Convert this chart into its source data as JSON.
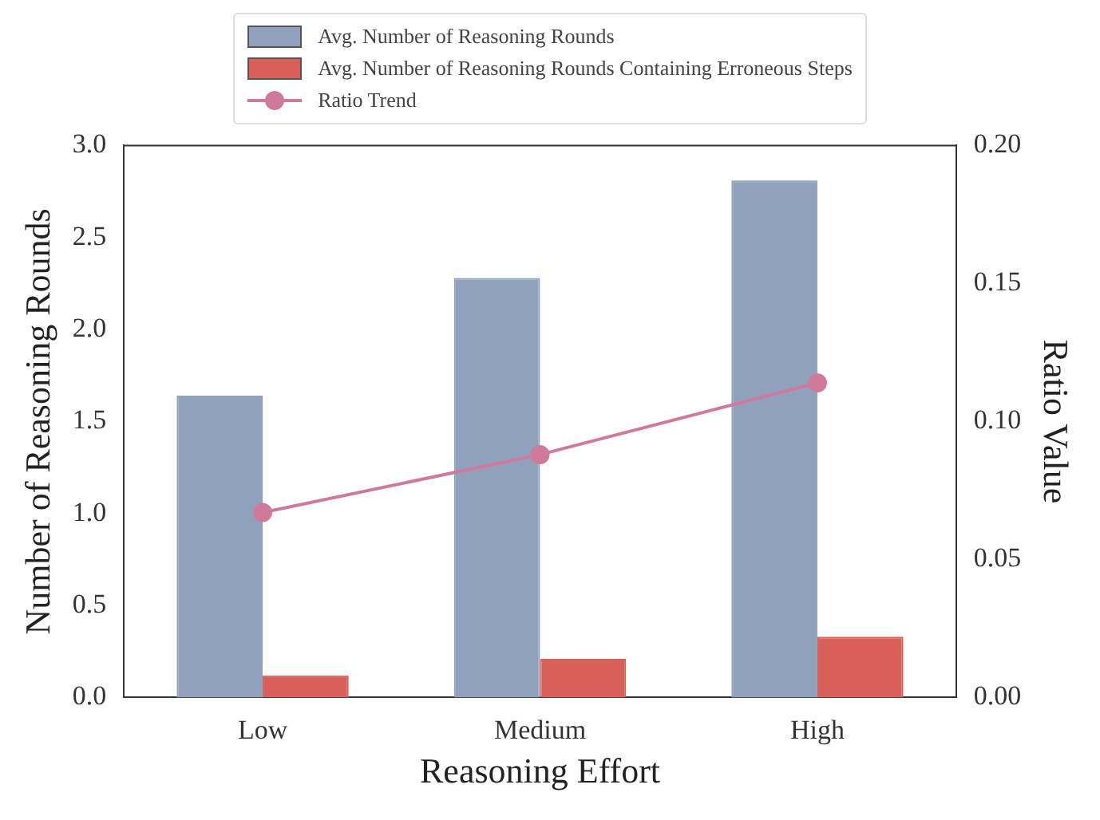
{
  "chart_data": {
    "type": "bar",
    "xlabel": "Reasoning Effort",
    "ylabel": "Number of Reasoning Rounds",
    "y2label": "Ratio Value",
    "categories": [
      "Low",
      "Medium",
      "High"
    ],
    "series": [
      {
        "name": "Avg. Number of Reasoning Rounds",
        "color": "#8fa1bd",
        "values": [
          1.64,
          2.28,
          2.81
        ]
      },
      {
        "name": "Avg. Number of Reasoning Rounds Containing Erroneous Steps",
        "color": "#d9605a",
        "values": [
          0.12,
          0.21,
          0.33
        ]
      },
      {
        "name": "Ratio Trend",
        "type": "line",
        "axis": "y2",
        "color": "#cf7a9a",
        "marker": "circle",
        "values": [
          0.067,
          0.088,
          0.114
        ]
      }
    ],
    "ylim": [
      0,
      3
    ],
    "yticks": [
      {
        "value": 0,
        "label": "0.0"
      },
      {
        "value": 0.5,
        "label": "0.5"
      },
      {
        "value": 1,
        "label": "1.0"
      },
      {
        "value": 1.5,
        "label": "1.5"
      },
      {
        "value": 2,
        "label": "2.0"
      },
      {
        "value": 2.5,
        "label": "2.5"
      },
      {
        "value": 3,
        "label": "3.0"
      }
    ],
    "y2lim": [
      0,
      0.2
    ],
    "y2ticks": [
      {
        "value": 0,
        "label": "0.00"
      },
      {
        "value": 0.05,
        "label": "0.05"
      },
      {
        "value": 0.1,
        "label": "0.10"
      },
      {
        "value": 0.15,
        "label": "0.15"
      },
      {
        "value": 0.2,
        "label": "0.20"
      }
    ],
    "legend": "top",
    "grid": false
  }
}
